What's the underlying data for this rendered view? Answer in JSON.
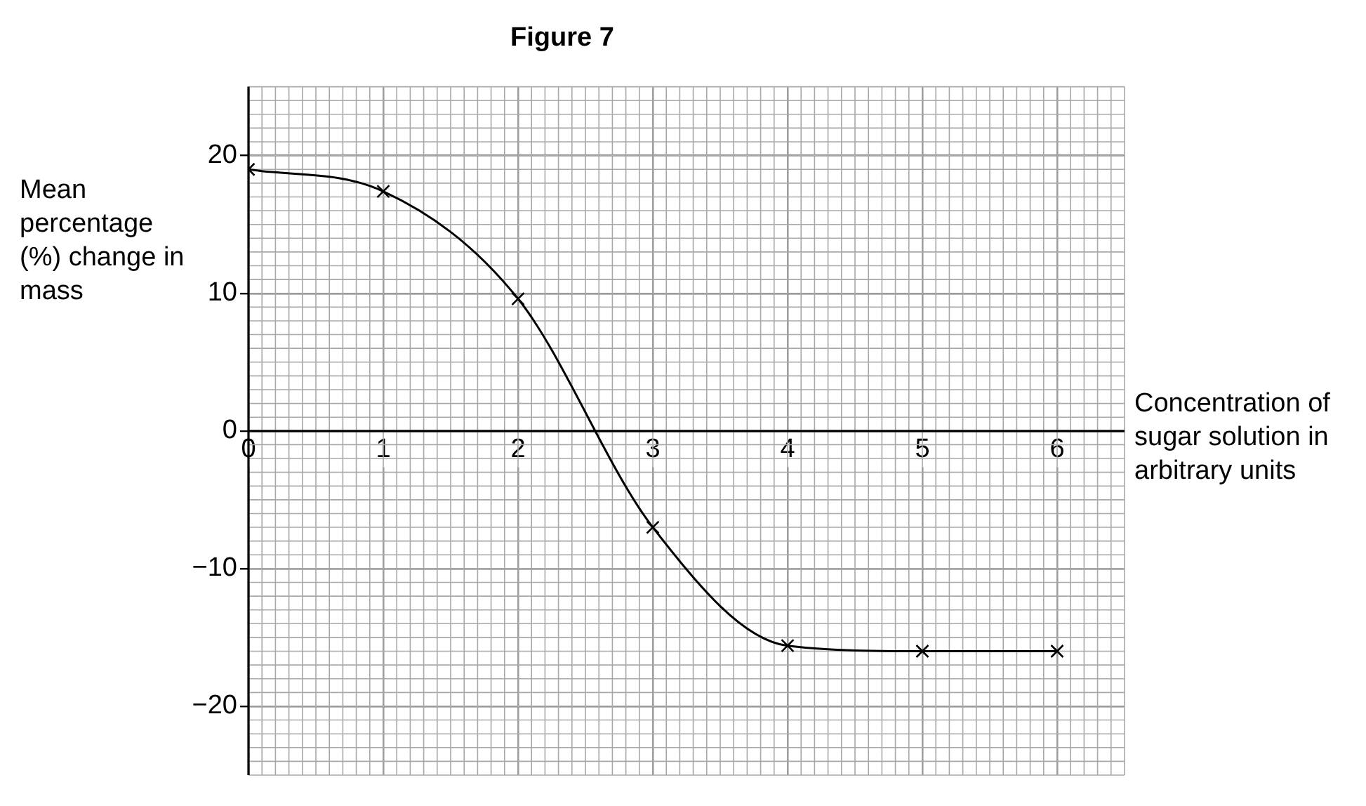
{
  "chart_data": {
    "type": "line",
    "title": "Figure 7",
    "xlabel": "Concentration of sugar solution in arbitrary units",
    "ylabel": "Mean percentage (%) change in mass",
    "x": [
      0,
      1,
      2,
      3,
      4,
      5,
      6
    ],
    "series": [
      {
        "color": "#000000",
        "values": [
          19,
          17.4,
          9.6,
          -7,
          -15.6,
          -16,
          -16
        ]
      }
    ],
    "xlim": [
      0,
      6.5
    ],
    "xticks": [
      0,
      1,
      2,
      3,
      4,
      5,
      6
    ],
    "ylim": [
      -25,
      25
    ],
    "yticks": [
      {
        "value": -20,
        "label": "−20"
      },
      {
        "value": -10,
        "label": "−10"
      },
      0,
      10,
      20
    ],
    "grid": true,
    "marker": "cross",
    "line_style": "solid",
    "legend": false
  }
}
